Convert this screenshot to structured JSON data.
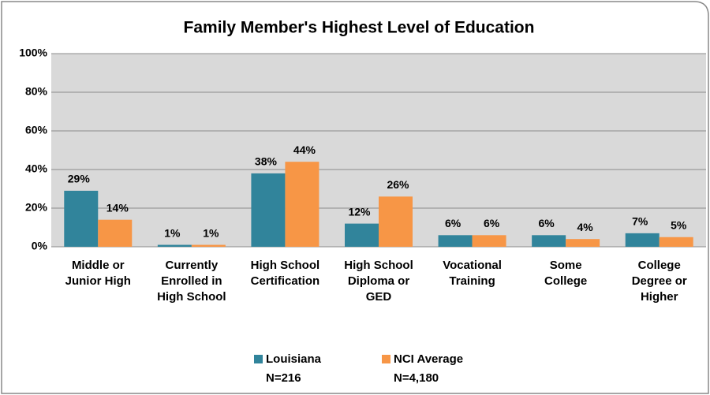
{
  "chart_data": {
    "type": "bar",
    "title": "Family Member's Highest Level of Education",
    "categories": [
      [
        "Middle or",
        "Junior High"
      ],
      [
        "Currently",
        "Enrolled in",
        "High School"
      ],
      [
        "High School",
        "Certification"
      ],
      [
        "High School",
        "Diploma or",
        "GED"
      ],
      [
        "Vocational",
        "Training"
      ],
      [
        "Some",
        "College"
      ],
      [
        "College",
        "Degree or",
        "Higher"
      ]
    ],
    "series": [
      {
        "name": "Louisiana",
        "note": "N=216",
        "color": "#31849b",
        "values": [
          29,
          1,
          38,
          12,
          6,
          6,
          7
        ],
        "value_labels": [
          "29%",
          "1%",
          "38%",
          "12%",
          "6%",
          "6%",
          "7%"
        ]
      },
      {
        "name": "NCI Average",
        "note": "N=4,180",
        "color": "#f79646",
        "values": [
          14,
          1,
          44,
          26,
          6,
          4,
          5
        ],
        "value_labels": [
          "14%",
          "1%",
          "44%",
          "26%",
          "6%",
          "4%",
          "5%"
        ]
      }
    ],
    "ylim": [
      0,
      100
    ],
    "yticks": [
      {
        "value": 0,
        "label": "0%"
      },
      {
        "value": 20,
        "label": "20%"
      },
      {
        "value": 40,
        "label": "40%"
      },
      {
        "value": 60,
        "label": "60%"
      },
      {
        "value": 80,
        "label": "80%"
      },
      {
        "value": 100,
        "label": "100%"
      }
    ],
    "grid": true,
    "legend": "bottom"
  }
}
